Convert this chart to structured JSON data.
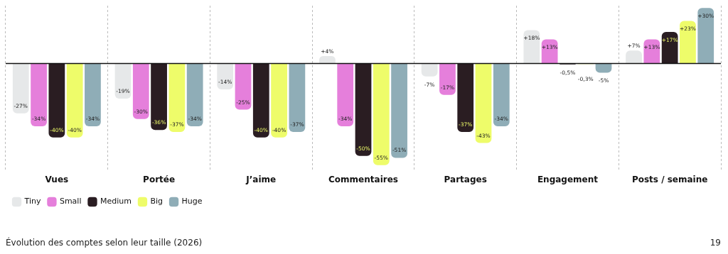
{
  "chart_data": {
    "type": "bar",
    "categories": [
      "Vues",
      "Portée",
      "J’aime",
      "Commentaires",
      "Partages",
      "Engagement",
      "Posts / semaine"
    ],
    "series": [
      {
        "name": "Tiny",
        "color": "#e6e8e9",
        "values": [
          -27,
          -19,
          -14,
          4,
          -7,
          18,
          7
        ],
        "value_labels": [
          "-27%",
          "-19%",
          "-14%",
          "+4%",
          "-7%",
          "+18%",
          "+7%"
        ]
      },
      {
        "name": "Small",
        "color": "#e57fdb",
        "values": [
          -34,
          -30,
          -25,
          -34,
          -17,
          13,
          13
        ],
        "value_labels": [
          "-34%",
          "-30%",
          "-25%",
          "-34%",
          "-17%",
          "+13%",
          "+13%"
        ]
      },
      {
        "name": "Medium",
        "color": "#2a1d22",
        "values": [
          -40,
          -36,
          -40,
          -50,
          -37,
          -0.5,
          17
        ],
        "value_labels": [
          "-40%",
          "-36%",
          "-40%",
          "-50%",
          "-37%",
          "-0,5%",
          "+17%"
        ]
      },
      {
        "name": "Big",
        "color": "#eefc6a",
        "values": [
          -40,
          -37,
          -40,
          -55,
          -43,
          -0.3,
          23
        ],
        "value_labels": [
          "-40%",
          "-37%",
          "-40%",
          "-55%",
          "-43%",
          "-0,3%",
          "+23%"
        ]
      },
      {
        "name": "Huge",
        "color": "#8fadb7",
        "values": [
          -34,
          -34,
          -37,
          -51,
          -34,
          -5,
          30
        ],
        "value_labels": [
          "-34%",
          "-34%",
          "-37%",
          "-51%",
          "-34%",
          "-5%",
          "+30%"
        ]
      }
    ],
    "grid": "x",
    "legend": "bottom left",
    "annotations": [
      "Évolution des comptes selon leur taille (2026)",
      "19"
    ]
  }
}
